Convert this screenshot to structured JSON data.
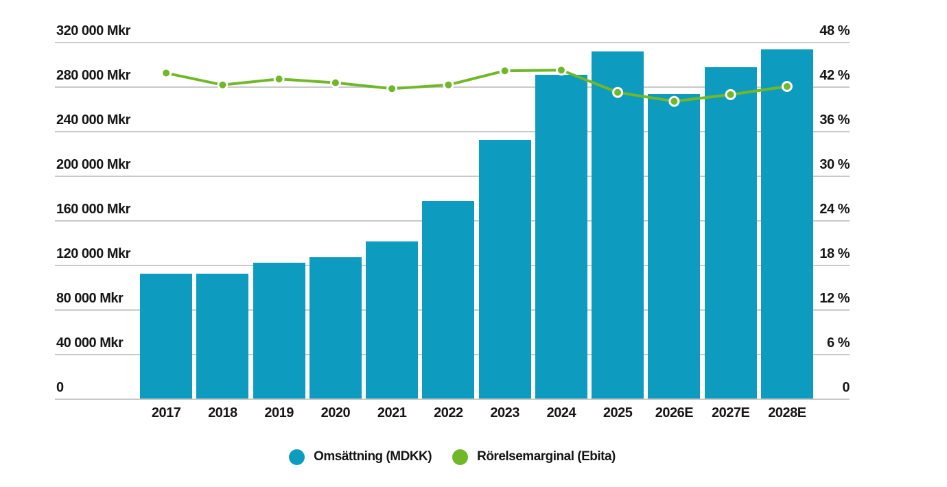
{
  "chart_data": {
    "type": "combo-bar-line",
    "title": "",
    "categories": [
      "2017",
      "2018",
      "2019",
      "2020",
      "2021",
      "2022",
      "2023",
      "2024",
      "2025",
      "2026E",
      "2027E",
      "2028E"
    ],
    "series": [
      {
        "name": "Omsättning (MDKK)",
        "type": "bar",
        "axis": "left",
        "color": "#0D9CBF",
        "values": [
          111700,
          111800,
          122000,
          126900,
          140800,
          177000,
          232300,
          290400,
          311500,
          273000,
          297000,
          313500
        ]
      },
      {
        "name": "Rörelsemarginal (Ebita)",
        "type": "line",
        "axis": "right",
        "color": "#70B828",
        "marker": "circle-white-ring",
        "values": [
          43.8,
          42.2,
          43.0,
          42.5,
          41.7,
          42.2,
          44.1,
          44.2,
          41.2,
          40.0,
          40.9,
          42.0
        ]
      }
    ],
    "left_axis": {
      "unit": "Mkr",
      "min": 0,
      "max": 320000,
      "step": 40000,
      "tick_labels": [
        "320 000 Mkr",
        "280 000 Mkr",
        "240 000 Mkr",
        "200 000 Mkr",
        "160 000 Mkr",
        "120 000 Mkr",
        "80 000 Mkr",
        "40 000 Mkr",
        "0"
      ]
    },
    "right_axis": {
      "unit": "%",
      "min": 0,
      "max": 48,
      "step": 6,
      "tick_labels": [
        "48 %",
        "42 %",
        "36 %",
        "30 %",
        "24 %",
        "18 %",
        "12 %",
        "6 %",
        "0"
      ]
    },
    "grid": true,
    "legend_position": "bottom",
    "colors": {
      "bar": "#0D9CBF",
      "line": "#70B828",
      "gridline": "#C9C9C9",
      "text": "#161616",
      "background": "#FFFFFF"
    }
  },
  "legend": {
    "items": [
      {
        "label": "Omsättning (MDKK)",
        "color": "#0D9CBF"
      },
      {
        "label": "Rörelsemarginal (Ebita)",
        "color": "#70B828"
      }
    ]
  }
}
